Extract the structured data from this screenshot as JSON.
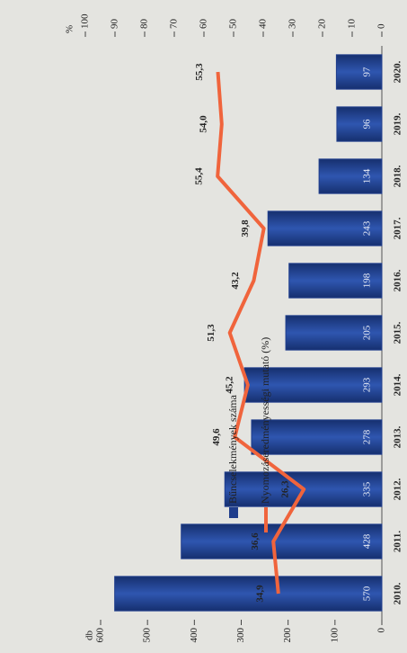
{
  "chart_data": {
    "type": "bar",
    "categories": [
      "2010.",
      "2011.",
      "2012.",
      "2013.",
      "2014.",
      "2015.",
      "2016.",
      "2017.",
      "2018.",
      "2019.",
      "2020."
    ],
    "series": [
      {
        "name": "Bűncselekmények száma",
        "type": "bar",
        "axis": "y",
        "color": "#1f3d8c",
        "values": [
          570,
          428,
          335,
          278,
          293,
          205,
          198,
          243,
          134,
          96,
          97
        ]
      },
      {
        "name": "Nyomozáseredményességi mutató (%)",
        "type": "line",
        "axis": "y2",
        "color": "#f0643c",
        "values": [
          34.9,
          36.6,
          26.3,
          49.6,
          45.2,
          51.3,
          43.2,
          39.8,
          55.4,
          54.0,
          55.3
        ],
        "value_labels": [
          "34,9",
          "36,6",
          "26,3",
          "49,6",
          "45,2",
          "51,3",
          "43,2",
          "39,8",
          "55,4",
          "54,0",
          "55,3"
        ]
      }
    ],
    "ylabel": "db",
    "y2label": "%",
    "ylim": [
      0,
      600
    ],
    "yticks": [
      0,
      100,
      200,
      300,
      400,
      500,
      600
    ],
    "y2lim": [
      0,
      100
    ],
    "y2ticks": [
      0,
      10,
      20,
      30,
      40,
      50,
      60,
      70,
      80,
      90,
      100
    ],
    "legend": "top"
  }
}
